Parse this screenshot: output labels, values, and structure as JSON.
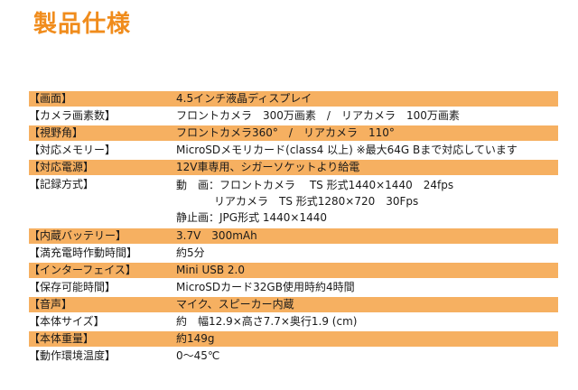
{
  "title": "製品仕様",
  "specs": [
    {
      "label": "【画面】",
      "value": "4.5インチ液晶ディスプレイ"
    },
    {
      "label": "【カメラ画素数】",
      "value": "フロントカメラ　300万画素　/　リアカメラ　100万画素"
    },
    {
      "label": "【視野角】",
      "value": "フロントカメラ360°　/　リアカメラ　110°"
    },
    {
      "label": "【対応メモリー】",
      "value": "MicroSDメモリカード(class4 以上) ※最大64G Bまで対応しています"
    },
    {
      "label": "【対応電源】",
      "value": "12V車専用、シガーソケットより給電"
    },
    {
      "label": "【記録方式】",
      "lines": [
        "動　画：フロントカメラ　 TS 形式1440×1440　24fps",
        "リアカメラ　TS 形式1280×720　30Fps",
        "静止画：JPG形式 1440×1440"
      ]
    },
    {
      "label": "【内蔵バッテリー】",
      "value": "3.7V　300mAh"
    },
    {
      "label": "【満充電時作動時間】",
      "value": "約5分"
    },
    {
      "label": "【インターフェイス】",
      "value": "Mini USB 2.0"
    },
    {
      "label": "【保存可能時間】",
      "value": "MicroSDカード32GB使用時約4時間"
    },
    {
      "label": "【音声】",
      "value": "マイク、スピーカー内蔵"
    },
    {
      "label": "【本体サイズ】",
      "value": "約　幅12.9×高さ7.7×奥行1.9 (cm)"
    },
    {
      "label": "【本体重量】",
      "value": "約149g"
    },
    {
      "label": "【動作環境温度】",
      "value": "0～45℃"
    }
  ],
  "colors": {
    "title": "#f08c1c",
    "row_shade": "#f6b061",
    "text": "#1a1a1a"
  }
}
